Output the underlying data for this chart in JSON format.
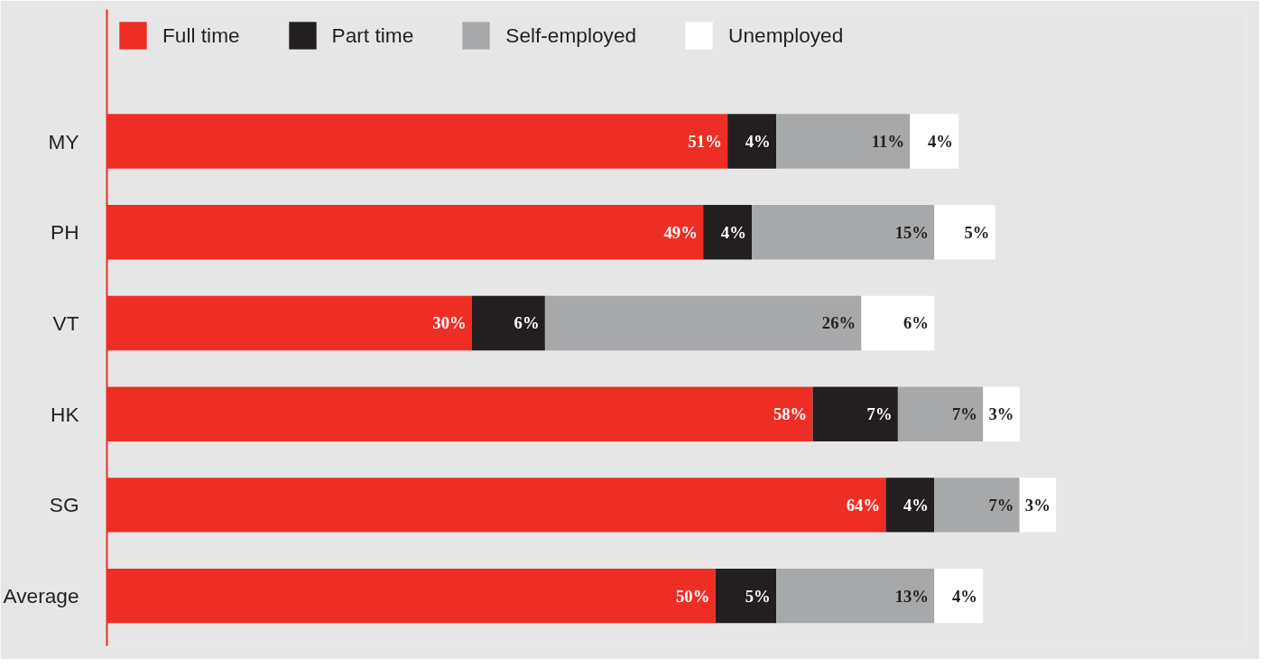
{
  "chart_data": {
    "type": "bar",
    "orientation": "horizontal",
    "stacked": true,
    "legend": "top left",
    "categories": [
      "MY",
      "PH",
      "VT",
      "HK",
      "SG",
      "Average"
    ],
    "series": [
      {
        "name": "Full time",
        "color": "#ee2e24",
        "values": [
          51,
          49,
          30,
          58,
          64,
          50
        ],
        "value_labels": [
          "51%",
          "49%",
          "30%",
          "58%",
          "64%",
          "50%"
        ]
      },
      {
        "name": "Part time",
        "color": "#231f20",
        "values": [
          4,
          4,
          6,
          7,
          4,
          5
        ],
        "value_labels": [
          "4%",
          "4%",
          "6%",
          "7%",
          "4%",
          "5%"
        ]
      },
      {
        "name": "Self-employed",
        "color": "#a7a8aa",
        "values": [
          11,
          15,
          26,
          7,
          7,
          13
        ],
        "value_labels": [
          "11%",
          "15%",
          "26%",
          "7%",
          "7%",
          "13%"
        ]
      },
      {
        "name": "Unemployed",
        "color": "#ffffff",
        "values": [
          4,
          5,
          6,
          3,
          3,
          4
        ],
        "value_labels": [
          "4%",
          "5%",
          "6%",
          "3%",
          "3%",
          "4%"
        ]
      }
    ]
  }
}
